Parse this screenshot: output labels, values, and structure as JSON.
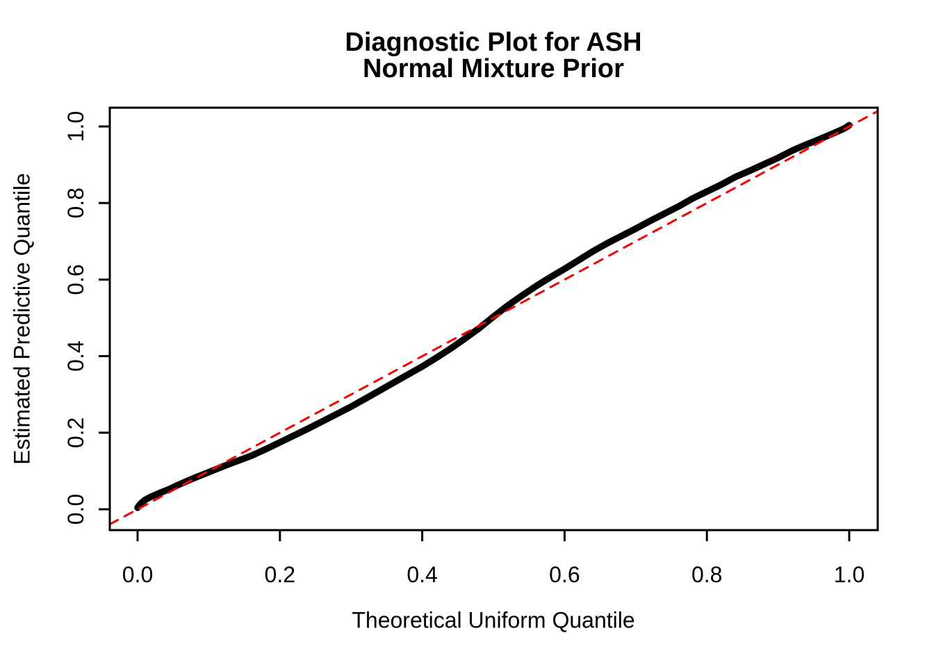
{
  "figure": {
    "title_line1": "Diagnostic Plot for ASH",
    "title_line2": "Normal Mixture Prior",
    "background": "#FFFFFF"
  },
  "chart_data": {
    "type": "line",
    "title": "Diagnostic Plot for ASH\nNormal Mixture Prior",
    "xlabel": "Theoretical Uniform Quantile",
    "ylabel": "Estimated Predictive Quantile",
    "xlim": [
      -0.04,
      1.04
    ],
    "ylim": [
      -0.055,
      1.05
    ],
    "grid": false,
    "legend": null,
    "x_ticks": [
      0.0,
      0.2,
      0.4,
      0.6,
      0.8,
      1.0
    ],
    "y_ticks": [
      0.0,
      0.2,
      0.4,
      0.6,
      0.8,
      1.0
    ],
    "x_tick_labels": [
      "0.0",
      "0.2",
      "0.4",
      "0.6",
      "0.8",
      "1.0"
    ],
    "y_tick_labels": [
      "0.0",
      "0.2",
      "0.4",
      "0.6",
      "0.8",
      "1.0"
    ],
    "series": [
      {
        "name": "estimated-predictive-quantile-curve",
        "type": "line",
        "color": "#000000",
        "stroke_width": 9.5,
        "dashed": false,
        "points": [
          [
            0.0,
            0.004
          ],
          [
            0.002,
            0.01
          ],
          [
            0.005,
            0.016
          ],
          [
            0.01,
            0.024
          ],
          [
            0.018,
            0.032
          ],
          [
            0.03,
            0.042
          ],
          [
            0.045,
            0.053
          ],
          [
            0.06,
            0.066
          ],
          [
            0.08,
            0.082
          ],
          [
            0.1,
            0.097
          ],
          [
            0.12,
            0.112
          ],
          [
            0.14,
            0.126
          ],
          [
            0.16,
            0.14
          ],
          [
            0.18,
            0.157
          ],
          [
            0.2,
            0.175
          ],
          [
            0.22,
            0.193
          ],
          [
            0.24,
            0.211
          ],
          [
            0.26,
            0.23
          ],
          [
            0.28,
            0.249
          ],
          [
            0.3,
            0.268
          ],
          [
            0.32,
            0.289
          ],
          [
            0.34,
            0.31
          ],
          [
            0.36,
            0.331
          ],
          [
            0.38,
            0.352
          ],
          [
            0.4,
            0.373
          ],
          [
            0.42,
            0.396
          ],
          [
            0.44,
            0.42
          ],
          [
            0.46,
            0.446
          ],
          [
            0.48,
            0.473
          ],
          [
            0.5,
            0.503
          ],
          [
            0.52,
            0.532
          ],
          [
            0.54,
            0.558
          ],
          [
            0.56,
            0.583
          ],
          [
            0.58,
            0.606
          ],
          [
            0.6,
            0.628
          ],
          [
            0.62,
            0.651
          ],
          [
            0.64,
            0.674
          ],
          [
            0.66,
            0.695
          ],
          [
            0.68,
            0.714
          ],
          [
            0.7,
            0.733
          ],
          [
            0.72,
            0.753
          ],
          [
            0.74,
            0.772
          ],
          [
            0.76,
            0.791
          ],
          [
            0.78,
            0.812
          ],
          [
            0.8,
            0.83
          ],
          [
            0.82,
            0.848
          ],
          [
            0.84,
            0.868
          ],
          [
            0.86,
            0.884
          ],
          [
            0.88,
            0.901
          ],
          [
            0.9,
            0.918
          ],
          [
            0.92,
            0.937
          ],
          [
            0.94,
            0.953
          ],
          [
            0.955,
            0.964
          ],
          [
            0.97,
            0.976
          ],
          [
            0.98,
            0.984
          ],
          [
            0.99,
            0.992
          ],
          [
            0.996,
            0.998
          ],
          [
            1.0,
            1.003
          ]
        ]
      },
      {
        "name": "identity-reference-line",
        "type": "line",
        "color": "#FF0000",
        "stroke_width": 3,
        "dashed": true,
        "points": [
          [
            -0.039,
            -0.039
          ],
          [
            1.04,
            1.04
          ]
        ]
      }
    ]
  }
}
